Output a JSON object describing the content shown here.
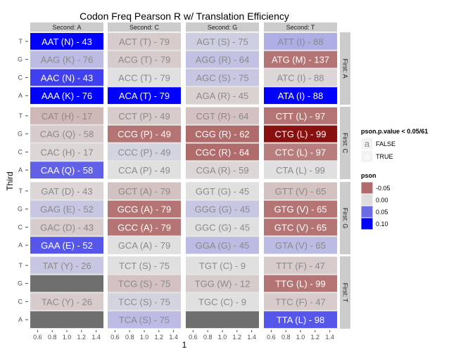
{
  "chart_data": {
    "type": "heatmap",
    "title": "Codon Freq Pearson R w/ Translation Efficiency",
    "xlabel": "1",
    "ylabel": "Third",
    "x_ticks": [
      "0.6",
      "0.8",
      "1.0",
      "1.2",
      "1.4"
    ],
    "col_facets": [
      "Second: A",
      "Second: C",
      "Second: G",
      "Second: T"
    ],
    "row_facets": [
      "First: A",
      "First: C",
      "First: G",
      "First: T"
    ],
    "third_levels": [
      "T",
      "G",
      "C",
      "A"
    ],
    "fill_legend": {
      "title": "pson",
      "breaks": [
        "-0.05",
        "0.00",
        "0.05",
        "0.10"
      ],
      "colors": [
        "#b06b6b",
        "#dddddd",
        "#6b6be6",
        "#0000ff"
      ]
    },
    "alpha_legend": {
      "title": "pson.p.value < 0.05/61",
      "entries": [
        "FALSE",
        "TRUE"
      ],
      "key_letter": "a"
    },
    "na_color": "#6f6f6f",
    "cells": [
      {
        "first": "A",
        "second": "A",
        "third": "T",
        "label": "AAT (N) - 43",
        "pson": 0.1,
        "sig": true
      },
      {
        "first": "A",
        "second": "A",
        "third": "G",
        "label": "AAG (K) - 76",
        "pson": 0.03,
        "sig": false
      },
      {
        "first": "A",
        "second": "A",
        "third": "C",
        "label": "AAC (N) - 43",
        "pson": 0.07,
        "sig": true
      },
      {
        "first": "A",
        "second": "A",
        "third": "A",
        "label": "AAA (K) - 76",
        "pson": 0.11,
        "sig": true
      },
      {
        "first": "A",
        "second": "C",
        "third": "T",
        "label": "ACT (T) - 79",
        "pson": -0.02,
        "sig": false
      },
      {
        "first": "A",
        "second": "C",
        "third": "G",
        "label": "ACG (T) - 79",
        "pson": -0.02,
        "sig": false
      },
      {
        "first": "A",
        "second": "C",
        "third": "C",
        "label": "ACC (T) - 79",
        "pson": 0.0,
        "sig": false
      },
      {
        "first": "A",
        "second": "C",
        "third": "A",
        "label": "ACA (T) - 79",
        "pson": 0.11,
        "sig": true
      },
      {
        "first": "A",
        "second": "G",
        "third": "T",
        "label": "AGT (S) - 75",
        "pson": 0.015,
        "sig": false
      },
      {
        "first": "A",
        "second": "G",
        "third": "G",
        "label": "AGG (R) - 64",
        "pson": 0.025,
        "sig": false
      },
      {
        "first": "A",
        "second": "G",
        "third": "C",
        "label": "AGC (S) - 75",
        "pson": 0.02,
        "sig": false
      },
      {
        "first": "A",
        "second": "G",
        "third": "A",
        "label": "AGA (R) - 45",
        "pson": -0.015,
        "sig": false
      },
      {
        "first": "A",
        "second": "T",
        "third": "T",
        "label": "ATT (I) - 88",
        "pson": 0.04,
        "sig": false
      },
      {
        "first": "A",
        "second": "T",
        "third": "G",
        "label": "ATG (M) - 137",
        "pson": -0.055,
        "sig": true
      },
      {
        "first": "A",
        "second": "T",
        "third": "C",
        "label": "ATC (I) - 88",
        "pson": -0.01,
        "sig": false
      },
      {
        "first": "A",
        "second": "T",
        "third": "A",
        "label": "ATA (I) - 88",
        "pson": 0.11,
        "sig": true
      },
      {
        "first": "C",
        "second": "A",
        "third": "T",
        "label": "CAT (H) - 17",
        "pson": -0.04,
        "sig": false
      },
      {
        "first": "C",
        "second": "A",
        "third": "G",
        "label": "CAG (Q) - 58",
        "pson": -0.02,
        "sig": false
      },
      {
        "first": "C",
        "second": "A",
        "third": "C",
        "label": "CAC (H) - 17",
        "pson": -0.01,
        "sig": false
      },
      {
        "first": "C",
        "second": "A",
        "third": "A",
        "label": "CAA (Q) - 58",
        "pson": 0.055,
        "sig": true
      },
      {
        "first": "C",
        "second": "C",
        "third": "T",
        "label": "CCT (P) - 49",
        "pson": -0.02,
        "sig": false
      },
      {
        "first": "C",
        "second": "C",
        "third": "G",
        "label": "CCG (P) - 49",
        "pson": -0.055,
        "sig": true
      },
      {
        "first": "C",
        "second": "C",
        "third": "C",
        "label": "CCC (P) - 49",
        "pson": 0.01,
        "sig": false
      },
      {
        "first": "C",
        "second": "C",
        "third": "A",
        "label": "CCA (P) - 49",
        "pson": 0.0,
        "sig": false
      },
      {
        "first": "C",
        "second": "G",
        "third": "T",
        "label": "CGT (R) - 64",
        "pson": -0.03,
        "sig": false
      },
      {
        "first": "C",
        "second": "G",
        "third": "G",
        "label": "CGG (R) - 62",
        "pson": -0.06,
        "sig": true
      },
      {
        "first": "C",
        "second": "G",
        "third": "C",
        "label": "CGC (R) - 64",
        "pson": -0.06,
        "sig": true
      },
      {
        "first": "C",
        "second": "G",
        "third": "A",
        "label": "CGA (R) - 59",
        "pson": -0.01,
        "sig": false
      },
      {
        "first": "C",
        "second": "T",
        "third": "T",
        "label": "CTT (L) - 97",
        "pson": -0.055,
        "sig": true
      },
      {
        "first": "C",
        "second": "T",
        "third": "G",
        "label": "CTG (L) - 99",
        "pson": -0.13,
        "sig": true
      },
      {
        "first": "C",
        "second": "T",
        "third": "C",
        "label": "CTC (L) - 97",
        "pson": -0.05,
        "sig": true
      },
      {
        "first": "C",
        "second": "T",
        "third": "A",
        "label": "CTA (L) - 99",
        "pson": 0.0,
        "sig": false
      },
      {
        "first": "G",
        "second": "A",
        "third": "T",
        "label": "GAT (D) - 43",
        "pson": -0.01,
        "sig": false
      },
      {
        "first": "G",
        "second": "A",
        "third": "G",
        "label": "GAG (E) - 52",
        "pson": 0.02,
        "sig": false
      },
      {
        "first": "G",
        "second": "A",
        "third": "C",
        "label": "GAC (D) - 43",
        "pson": -0.02,
        "sig": false
      },
      {
        "first": "G",
        "second": "A",
        "third": "A",
        "label": "GAA (E) - 52",
        "pson": 0.06,
        "sig": true
      },
      {
        "first": "G",
        "second": "C",
        "third": "T",
        "label": "GCT (A) - 79",
        "pson": -0.03,
        "sig": false
      },
      {
        "first": "G",
        "second": "C",
        "third": "G",
        "label": "GCG (A) - 79",
        "pson": -0.055,
        "sig": true
      },
      {
        "first": "G",
        "second": "C",
        "third": "C",
        "label": "GCC (A) - 79",
        "pson": -0.055,
        "sig": true
      },
      {
        "first": "G",
        "second": "C",
        "third": "A",
        "label": "GCA (A) - 79",
        "pson": 0.0,
        "sig": false
      },
      {
        "first": "G",
        "second": "G",
        "third": "T",
        "label": "GGT (G) - 45",
        "pson": 0.0,
        "sig": false
      },
      {
        "first": "G",
        "second": "G",
        "third": "G",
        "label": "GGG (G) - 45",
        "pson": 0.02,
        "sig": false
      },
      {
        "first": "G",
        "second": "G",
        "third": "C",
        "label": "GGC (G) - 45",
        "pson": 0.0,
        "sig": false
      },
      {
        "first": "G",
        "second": "G",
        "third": "A",
        "label": "GGA (G) - 45",
        "pson": 0.03,
        "sig": false
      },
      {
        "first": "G",
        "second": "T",
        "third": "T",
        "label": "GTT (V) - 65",
        "pson": -0.03,
        "sig": false
      },
      {
        "first": "G",
        "second": "T",
        "third": "G",
        "label": "GTG (V) - 65",
        "pson": -0.055,
        "sig": true
      },
      {
        "first": "G",
        "second": "T",
        "third": "C",
        "label": "GTC (V) - 65",
        "pson": -0.055,
        "sig": true
      },
      {
        "first": "G",
        "second": "T",
        "third": "A",
        "label": "GTA (V) - 65",
        "pson": 0.03,
        "sig": false
      },
      {
        "first": "T",
        "second": "A",
        "third": "T",
        "label": "TAT (Y) - 26",
        "pson": 0.02,
        "sig": false
      },
      {
        "first": "T",
        "second": "A",
        "third": "G",
        "label": "",
        "pson": null,
        "sig": false
      },
      {
        "first": "T",
        "second": "A",
        "third": "C",
        "label": "TAC (Y) - 26",
        "pson": -0.02,
        "sig": false
      },
      {
        "first": "T",
        "second": "A",
        "third": "A",
        "label": "",
        "pson": null,
        "sig": false
      },
      {
        "first": "T",
        "second": "C",
        "third": "T",
        "label": "TCT (S) - 75",
        "pson": 0.0,
        "sig": false
      },
      {
        "first": "T",
        "second": "C",
        "third": "G",
        "label": "TCG (S) - 75",
        "pson": -0.03,
        "sig": false
      },
      {
        "first": "T",
        "second": "C",
        "third": "C",
        "label": "TCC (S) - 75",
        "pson": 0.01,
        "sig": false
      },
      {
        "first": "T",
        "second": "C",
        "third": "A",
        "label": "TCA (S) - 75",
        "pson": 0.03,
        "sig": false
      },
      {
        "first": "T",
        "second": "G",
        "third": "T",
        "label": "TGT (C) - 9",
        "pson": 0.0,
        "sig": false
      },
      {
        "first": "T",
        "second": "G",
        "third": "G",
        "label": "TGG (W) - 12",
        "pson": -0.02,
        "sig": false
      },
      {
        "first": "T",
        "second": "G",
        "third": "C",
        "label": "TGC (C) - 9",
        "pson": 0.0,
        "sig": false
      },
      {
        "first": "T",
        "second": "G",
        "third": "A",
        "label": "",
        "pson": null,
        "sig": false
      },
      {
        "first": "T",
        "second": "T",
        "third": "T",
        "label": "TTT (F) - 47",
        "pson": -0.02,
        "sig": false
      },
      {
        "first": "T",
        "second": "T",
        "third": "G",
        "label": "TTG (L) - 99",
        "pson": -0.055,
        "sig": true
      },
      {
        "first": "T",
        "second": "T",
        "third": "C",
        "label": "TTC (F) - 47",
        "pson": -0.02,
        "sig": false
      },
      {
        "first": "T",
        "second": "T",
        "third": "A",
        "label": "TTA (L) - 98",
        "pson": 0.06,
        "sig": true
      }
    ]
  }
}
